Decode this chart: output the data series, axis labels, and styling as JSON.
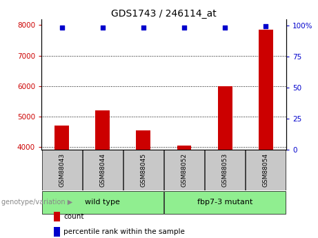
{
  "title": "GDS1743 / 246114_at",
  "samples": [
    "GSM88043",
    "GSM88044",
    "GSM88045",
    "GSM88052",
    "GSM88053",
    "GSM88054"
  ],
  "count_values": [
    4700,
    5200,
    4550,
    4050,
    6000,
    7850
  ],
  "percentile_values": [
    98,
    98,
    98,
    98,
    98,
    99
  ],
  "ylim_left": [
    3900,
    8200
  ],
  "ylim_right": [
    0,
    105
  ],
  "yticks_left": [
    4000,
    5000,
    6000,
    7000,
    8000
  ],
  "yticks_right": [
    0,
    25,
    50,
    75,
    100
  ],
  "ytick_labels_right": [
    "0",
    "25",
    "50",
    "75",
    "100%"
  ],
  "bar_color": "#cc0000",
  "dot_color": "#0000cc",
  "grid_color": "#000000",
  "group1_label": "wild type",
  "group2_label": "fbp7-3 mutant",
  "group1_indices": [
    0,
    1,
    2
  ],
  "group2_indices": [
    3,
    4,
    5
  ],
  "group_bg_color": "#90ee90",
  "sample_bg_color": "#c8c8c8",
  "legend_count_label": "count",
  "legend_pct_label": "percentile rank within the sample",
  "genotype_label": "genotype/variation"
}
